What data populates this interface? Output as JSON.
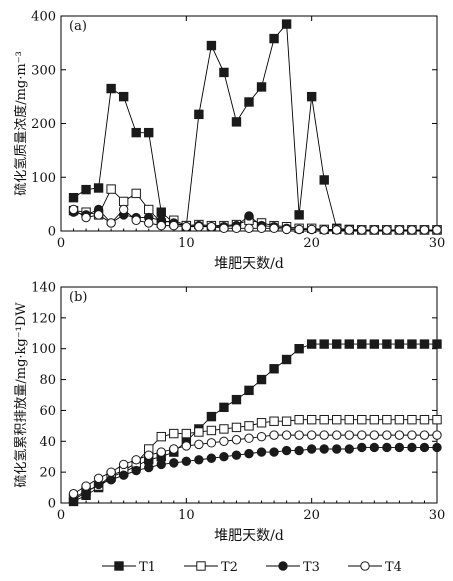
{
  "chart_data": [
    {
      "type": "line",
      "panel_label": "(a)",
      "xlabel": "堆肥天数/d",
      "ylabel": "硫化氢质量浓度/mg·m⁻³",
      "xlim": [
        0,
        30
      ],
      "ylim": [
        0,
        400
      ],
      "xticks": [
        0,
        10,
        20,
        30
      ],
      "yticks": [
        0,
        100,
        200,
        300,
        400
      ],
      "x": [
        1,
        2,
        3,
        4,
        5,
        6,
        7,
        8,
        9,
        10,
        11,
        12,
        13,
        14,
        15,
        16,
        17,
        18,
        19,
        20,
        21,
        22,
        23,
        24,
        25,
        26,
        27,
        28,
        29,
        30
      ],
      "series": [
        {
          "name": "T1",
          "marker": "filled-square",
          "values": [
            62,
            77,
            80,
            265,
            250,
            183,
            183,
            35,
            15,
            10,
            217,
            345,
            295,
            203,
            240,
            268,
            358,
            385,
            30,
            250,
            95,
            5,
            3,
            2,
            2,
            2,
            2,
            2,
            2,
            2
          ]
        },
        {
          "name": "T2",
          "marker": "open-square",
          "values": [
            38,
            35,
            30,
            78,
            55,
            70,
            40,
            15,
            20,
            10,
            12,
            10,
            10,
            12,
            20,
            15,
            10,
            8,
            5,
            5,
            3,
            3,
            2,
            2,
            2,
            2,
            2,
            2,
            2,
            2
          ]
        },
        {
          "name": "T3",
          "marker": "filled-circle",
          "values": [
            35,
            30,
            40,
            15,
            30,
            25,
            25,
            20,
            15,
            8,
            10,
            8,
            8,
            10,
            28,
            10,
            8,
            5,
            3,
            3,
            2,
            2,
            2,
            2,
            2,
            2,
            2,
            2,
            2,
            2
          ]
        },
        {
          "name": "T4",
          "marker": "open-circle",
          "values": [
            40,
            25,
            30,
            15,
            40,
            20,
            15,
            10,
            10,
            8,
            8,
            8,
            5,
            5,
            5,
            5,
            5,
            3,
            3,
            3,
            2,
            2,
            2,
            2,
            2,
            2,
            2,
            2,
            2,
            2
          ]
        }
      ]
    },
    {
      "type": "line",
      "panel_label": "(b)",
      "xlabel": "堆肥天数/d",
      "ylabel": "硫化氢累积排放量/mg·kg⁻¹DW",
      "xlim": [
        0,
        30
      ],
      "ylim": [
        0,
        140
      ],
      "xticks": [
        0,
        10,
        20,
        30
      ],
      "yticks": [
        0,
        20,
        40,
        60,
        80,
        100,
        120,
        140
      ],
      "x": [
        1,
        2,
        3,
        4,
        5,
        6,
        7,
        8,
        9,
        10,
        11,
        12,
        13,
        14,
        15,
        16,
        17,
        18,
        19,
        20,
        21,
        22,
        23,
        24,
        25,
        26,
        27,
        28,
        29,
        30
      ],
      "series": [
        {
          "name": "T1",
          "marker": "filled-square",
          "values": [
            1,
            5,
            10,
            17,
            20,
            24,
            28,
            30,
            33,
            40,
            48,
            56,
            62,
            67,
            73,
            80,
            87,
            93,
            100,
            103,
            103,
            103,
            103,
            103,
            103,
            103,
            103,
            103,
            103,
            103
          ]
        },
        {
          "name": "T2",
          "marker": "open-square",
          "values": [
            3,
            8,
            11,
            18,
            21,
            26,
            35,
            43,
            45,
            45,
            46,
            47,
            48,
            49,
            50,
            52,
            53,
            53,
            54,
            54,
            54,
            54,
            54,
            54,
            54,
            54,
            54,
            54,
            54,
            54
          ]
        },
        {
          "name": "T3",
          "marker": "filled-circle",
          "values": [
            2,
            7,
            12,
            15,
            18,
            21,
            23,
            25,
            26,
            27,
            28,
            29,
            30,
            31,
            32,
            33,
            33,
            34,
            34,
            35,
            35,
            35,
            35,
            36,
            36,
            36,
            36,
            36,
            36,
            36
          ]
        },
        {
          "name": "T4",
          "marker": "open-circle",
          "values": [
            6,
            11,
            16,
            20,
            25,
            28,
            31,
            33,
            35,
            37,
            38,
            39,
            40,
            41,
            42,
            43,
            44,
            44,
            44,
            44,
            44,
            44,
            44,
            44,
            44,
            44,
            44,
            44,
            44,
            44
          ]
        }
      ]
    }
  ],
  "legend": {
    "position": "bottom",
    "entries": [
      {
        "label": "T1",
        "marker": "filled-square"
      },
      {
        "label": "T2",
        "marker": "open-square"
      },
      {
        "label": "T3",
        "marker": "filled-circle"
      },
      {
        "label": "T4",
        "marker": "open-circle"
      }
    ]
  }
}
